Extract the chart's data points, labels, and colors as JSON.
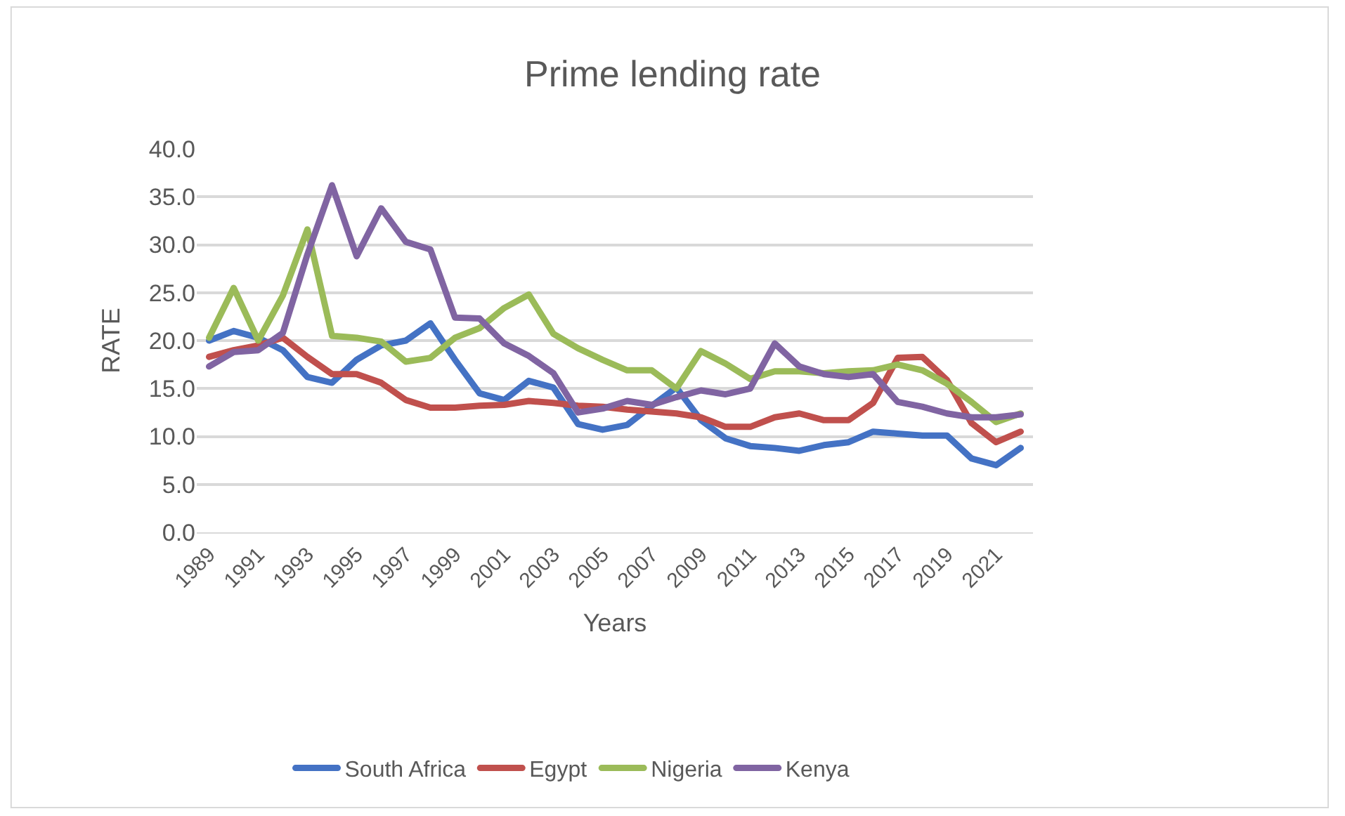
{
  "chart_data": {
    "type": "line",
    "title": "Prime lending rate",
    "xlabel": "Years",
    "ylabel": "RATE",
    "categories": [
      "1989",
      null,
      "1991",
      null,
      "1993",
      null,
      "1995",
      null,
      "1997",
      null,
      "1999",
      null,
      "2001",
      null,
      "2003",
      null,
      "2005",
      null,
      "2007",
      null,
      "2009",
      null,
      "2011",
      null,
      "2013",
      null,
      "2015",
      null,
      "2017",
      null,
      "2019",
      null,
      "2021",
      null
    ],
    "series": [
      {
        "name": "South Africa",
        "color": "#4472c4",
        "values": [
          20,
          21,
          20.3,
          19,
          16.2,
          15.6,
          18,
          19.5,
          20,
          21.8,
          18,
          14.5,
          13.8,
          15.8,
          15.1,
          11.3,
          10.7,
          11.2,
          13.2,
          15.1,
          11.7,
          9.8,
          9,
          8.8,
          8.5,
          9.1,
          9.4,
          10.5,
          10.3,
          10.1,
          10.1,
          7.7,
          7.0,
          8.8
        ]
      },
      {
        "name": "Egypt",
        "color": "#c0504d",
        "values": [
          18.3,
          19,
          19.5,
          20.3,
          18.3,
          16.5,
          16.5,
          15.6,
          13.8,
          13.0,
          13.0,
          13.2,
          13.3,
          13.7,
          13.5,
          13.2,
          13.1,
          12.8,
          12.6,
          12.4,
          12.0,
          11.0,
          11.0,
          12.0,
          12.4,
          11.7,
          11.7,
          13.5,
          18.2,
          18.3,
          15.9,
          11.4,
          9.4,
          10.5
        ]
      },
      {
        "name": "Nigeria",
        "color": "#9bbb59",
        "values": [
          20.3,
          25.5,
          20.0,
          24.7,
          31.6,
          20.5,
          20.3,
          19.9,
          17.8,
          18.2,
          20.3,
          21.3,
          23.4,
          24.8,
          20.7,
          19.2,
          18.0,
          16.9,
          16.9,
          15.0,
          18.9,
          17.6,
          16.0,
          16.8,
          16.8,
          16.6,
          16.8,
          16.9,
          17.5,
          16.9,
          15.5,
          13.6,
          11.5,
          12.4
        ]
      },
      {
        "name": "Kenya",
        "color": "#8064a2",
        "values": [
          17.3,
          18.8,
          19.0,
          20.8,
          29.0,
          36.2,
          28.8,
          33.8,
          30.3,
          29.5,
          22.4,
          22.3,
          19.7,
          18.4,
          16.6,
          12.5,
          12.9,
          13.7,
          13.3,
          14.1,
          14.8,
          14.4,
          15.0,
          19.7,
          17.3,
          16.5,
          16.2,
          16.5,
          13.6,
          13.1,
          12.4,
          12.0,
          12.0,
          12.3
        ]
      }
    ],
    "ylim": [
      0,
      40
    ],
    "yticks": [
      {
        "value": 0,
        "label": "0.0"
      },
      {
        "value": 5,
        "label": "5.0"
      },
      {
        "value": 10,
        "label": "10.0"
      },
      {
        "value": 15,
        "label": "15.0"
      },
      {
        "value": 20,
        "label": "20.0"
      },
      {
        "value": 25,
        "label": "25.0"
      },
      {
        "value": 30,
        "label": "30.0"
      },
      {
        "value": 35,
        "label": "35.0"
      },
      {
        "value": 40,
        "label": "40.0"
      }
    ],
    "grid": "y",
    "legend": "bottom",
    "marker": "none",
    "line_style": "solid"
  }
}
